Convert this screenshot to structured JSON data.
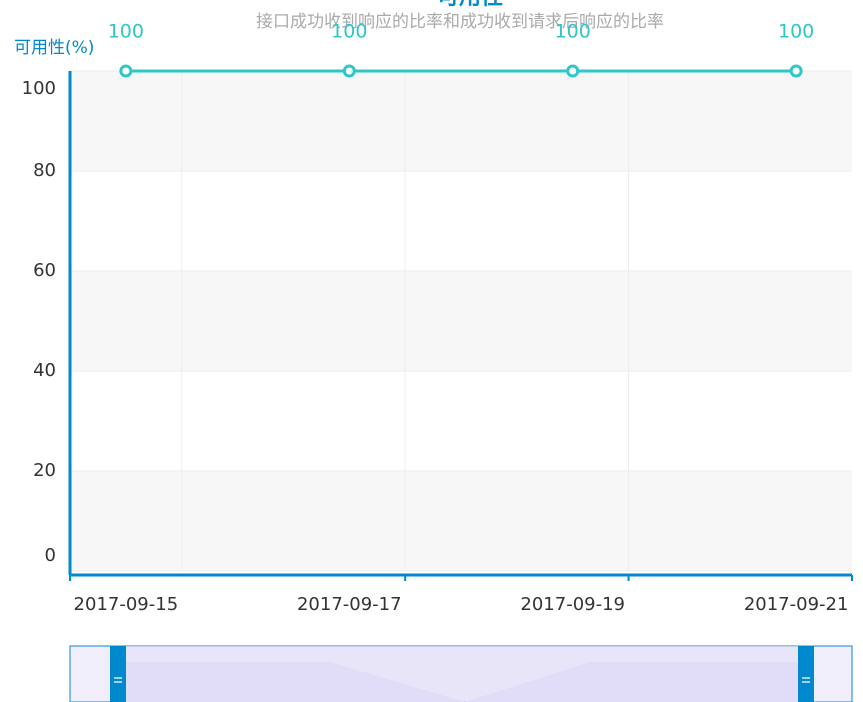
{
  "chart_data": {
    "type": "line",
    "title": "可用性",
    "subtitle": "接口成功收到响应的比率和成功收到请求后响应的比率",
    "y_label": "可用性(%)",
    "categories": [
      "2017-09-15",
      null,
      "2017-09-17",
      null,
      "2017-09-19",
      null,
      "2017-09-21"
    ],
    "series": [
      {
        "name": "可用性",
        "color": "#2ec7c9",
        "values": [
          100,
          100,
          100,
          100,
          100,
          100,
          100
        ],
        "value_labels": [
          "100",
          null,
          "100",
          null,
          "100",
          null,
          "100"
        ]
      }
    ],
    "ylim": [
      0,
      100
    ],
    "yticks": [
      0,
      20,
      40,
      60,
      80,
      100
    ],
    "grid": true
  }
}
